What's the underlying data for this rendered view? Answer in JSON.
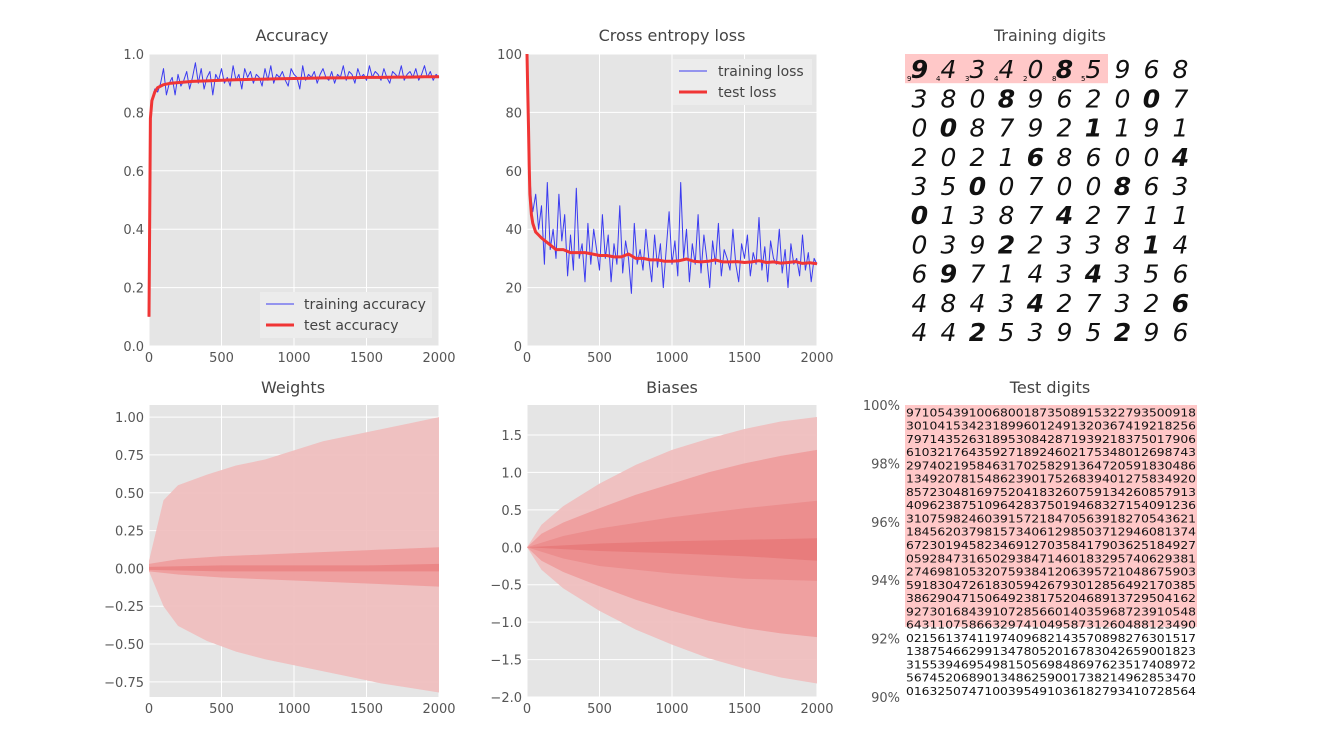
{
  "chart_data": [
    {
      "panel": "accuracy",
      "type": "line",
      "title": "Accuracy",
      "xlim": [
        0,
        2000
      ],
      "ylim": [
        0.0,
        1.0
      ],
      "xticks": [
        "0",
        "500",
        "1000",
        "1500",
        "2000"
      ],
      "yticks": [
        "0.0",
        "0.2",
        "0.4",
        "0.6",
        "0.8",
        "1.0"
      ],
      "legend": "bottom-right",
      "series": [
        {
          "name": "training accuracy",
          "color": "#3b3bf0",
          "x": [
            0,
            10,
            20,
            30,
            40,
            60,
            80,
            100,
            120,
            140,
            160,
            180,
            200,
            220,
            240,
            260,
            280,
            300,
            320,
            340,
            360,
            380,
            400,
            420,
            440,
            460,
            480,
            500,
            520,
            540,
            560,
            580,
            600,
            620,
            640,
            660,
            680,
            700,
            720,
            740,
            760,
            780,
            800,
            820,
            840,
            860,
            880,
            900,
            920,
            940,
            960,
            980,
            1000,
            1020,
            1040,
            1060,
            1080,
            1100,
            1120,
            1140,
            1160,
            1180,
            1200,
            1220,
            1240,
            1260,
            1280,
            1300,
            1320,
            1340,
            1360,
            1380,
            1400,
            1420,
            1440,
            1460,
            1480,
            1500,
            1520,
            1540,
            1560,
            1580,
            1600,
            1620,
            1640,
            1660,
            1680,
            1700,
            1720,
            1740,
            1760,
            1780,
            1800,
            1820,
            1840,
            1860,
            1880,
            1900,
            1920,
            1940,
            1960,
            1980,
            2000
          ],
          "y": [
            0.1,
            0.76,
            0.82,
            0.86,
            0.88,
            0.87,
            0.9,
            0.95,
            0.86,
            0.9,
            0.92,
            0.86,
            0.93,
            0.89,
            0.91,
            0.94,
            0.88,
            0.92,
            0.97,
            0.9,
            0.95,
            0.88,
            0.92,
            0.94,
            0.86,
            0.93,
            0.91,
            0.95,
            0.9,
            0.92,
            0.89,
            0.96,
            0.91,
            0.93,
            0.88,
            0.95,
            0.92,
            0.94,
            0.9,
            0.93,
            0.92,
            0.89,
            0.95,
            0.91,
            0.96,
            0.9,
            0.93,
            0.92,
            0.94,
            0.91,
            0.89,
            0.95,
            0.93,
            0.92,
            0.88,
            0.96,
            0.91,
            0.93,
            0.92,
            0.94,
            0.9,
            0.93,
            0.95,
            0.92,
            0.91,
            0.94,
            0.9,
            0.93,
            0.92,
            0.96,
            0.91,
            0.94,
            0.93,
            0.9,
            0.95,
            0.92,
            0.93,
            0.91,
            0.96,
            0.92,
            0.94,
            0.93,
            0.91,
            0.95,
            0.92,
            0.9,
            0.94,
            0.93,
            0.92,
            0.96,
            0.91,
            0.93,
            0.94,
            0.92,
            0.95,
            0.91,
            0.93,
            0.96,
            0.92,
            0.94,
            0.91,
            0.93,
            0.92
          ]
        },
        {
          "name": "test accuracy",
          "color": "#f03535",
          "x": [
            0,
            10,
            20,
            40,
            60,
            100,
            150,
            200,
            300,
            400,
            500,
            600,
            700,
            800,
            900,
            1000,
            1100,
            1200,
            1300,
            1400,
            1500,
            1600,
            1700,
            1800,
            1900,
            2000
          ],
          "y": [
            0.1,
            0.78,
            0.84,
            0.87,
            0.885,
            0.895,
            0.9,
            0.902,
            0.906,
            0.908,
            0.91,
            0.912,
            0.913,
            0.914,
            0.915,
            0.916,
            0.917,
            0.918,
            0.918,
            0.919,
            0.92,
            0.92,
            0.921,
            0.921,
            0.922,
            0.922
          ]
        }
      ]
    },
    {
      "panel": "loss",
      "type": "line",
      "title": "Cross entropy loss",
      "xlim": [
        0,
        2000
      ],
      "ylim": [
        0,
        100
      ],
      "xticks": [
        "0",
        "500",
        "1000",
        "1500",
        "2000"
      ],
      "yticks": [
        "0",
        "20",
        "40",
        "60",
        "80",
        "100"
      ],
      "legend": "top-right",
      "series": [
        {
          "name": "training loss",
          "color": "#3b3bf0",
          "x": [
            0,
            10,
            20,
            30,
            40,
            60,
            80,
            100,
            120,
            140,
            160,
            180,
            200,
            220,
            240,
            260,
            280,
            300,
            320,
            340,
            360,
            380,
            400,
            420,
            440,
            460,
            480,
            500,
            520,
            540,
            560,
            580,
            600,
            620,
            640,
            660,
            680,
            700,
            720,
            740,
            760,
            780,
            800,
            820,
            840,
            860,
            880,
            900,
            920,
            940,
            960,
            980,
            1000,
            1020,
            1040,
            1060,
            1080,
            1100,
            1120,
            1140,
            1160,
            1180,
            1200,
            1220,
            1240,
            1260,
            1280,
            1300,
            1320,
            1340,
            1360,
            1380,
            1400,
            1420,
            1440,
            1460,
            1480,
            1500,
            1520,
            1540,
            1560,
            1580,
            1600,
            1620,
            1640,
            1660,
            1680,
            1700,
            1720,
            1740,
            1760,
            1780,
            1800,
            1820,
            1840,
            1860,
            1880,
            1900,
            1920,
            1940,
            1960,
            1980,
            2000
          ],
          "y": [
            100,
            75,
            58,
            50,
            46,
            52,
            40,
            48,
            28,
            56,
            33,
            40,
            30,
            52,
            36,
            45,
            24,
            38,
            26,
            54,
            30,
            35,
            22,
            42,
            28,
            40,
            33,
            26,
            45,
            30,
            38,
            22,
            35,
            28,
            48,
            25,
            36,
            30,
            18,
            42,
            28,
            33,
            26,
            40,
            30,
            22,
            38,
            27,
            35,
            20,
            33,
            46,
            28,
            36,
            24,
            56,
            30,
            40,
            22,
            35,
            28,
            45,
            25,
            38,
            30,
            20,
            36,
            28,
            42,
            24,
            33,
            30,
            26,
            40,
            28,
            22,
            35,
            30,
            38,
            24,
            32,
            28,
            44,
            26,
            34,
            22,
            36,
            30,
            28,
            40,
            25,
            33,
            20,
            35,
            28,
            30,
            24,
            38,
            26,
            32,
            22,
            30,
            28
          ]
        },
        {
          "name": "test loss",
          "color": "#f03535",
          "x": [
            0,
            5,
            10,
            15,
            20,
            30,
            40,
            60,
            80,
            100,
            150,
            200,
            250,
            300,
            350,
            400,
            450,
            500,
            550,
            600,
            650,
            700,
            750,
            800,
            850,
            900,
            950,
            1000,
            1050,
            1100,
            1150,
            1200,
            1250,
            1300,
            1350,
            1400,
            1450,
            1500,
            1550,
            1600,
            1650,
            1700,
            1750,
            1800,
            1850,
            1900,
            1950,
            2000
          ],
          "y": [
            100,
            88,
            75,
            62,
            52,
            45,
            42,
            39,
            38,
            37,
            35,
            33,
            33,
            32,
            32,
            32,
            31.5,
            31,
            31,
            30.5,
            30.5,
            31.5,
            30,
            30,
            29.5,
            29.5,
            29,
            29,
            29.2,
            29.8,
            29,
            28.8,
            29,
            29.5,
            28.8,
            28.8,
            28.9,
            28.6,
            28.8,
            29.2,
            28.6,
            28.8,
            28.4,
            28.6,
            28.9,
            28.3,
            28.5,
            28.2
          ]
        }
      ]
    },
    {
      "panel": "weights",
      "type": "area",
      "title": "Weights",
      "xlim": [
        0,
        2000
      ],
      "ylim": [
        -0.85,
        1.08
      ],
      "xticks": [
        "0",
        "500",
        "1000",
        "1500",
        "2000"
      ],
      "yticks": [
        "1.00",
        "0.75",
        "0.50",
        "0.25",
        "0.00",
        "−0.25",
        "−0.50",
        "−0.75"
      ],
      "ytick_values": [
        1.0,
        0.75,
        0.5,
        0.25,
        0.0,
        -0.25,
        -0.5,
        -0.75
      ],
      "bands": [
        {
          "color": "#f0bcbc",
          "x": [
            0,
            100,
            200,
            400,
            600,
            800,
            1000,
            1200,
            1400,
            1600,
            1800,
            2000
          ],
          "upper": [
            0.05,
            0.45,
            0.55,
            0.62,
            0.68,
            0.72,
            0.78,
            0.84,
            0.88,
            0.92,
            0.96,
            1.0
          ],
          "lower": [
            -0.02,
            -0.25,
            -0.38,
            -0.48,
            -0.55,
            -0.6,
            -0.64,
            -0.68,
            -0.72,
            -0.76,
            -0.79,
            -0.82
          ]
        },
        {
          "color": "#ee9c9c",
          "x": [
            0,
            200,
            500,
            1000,
            1500,
            2000
          ],
          "upper": [
            0.03,
            0.06,
            0.08,
            0.1,
            0.12,
            0.14
          ],
          "lower": [
            -0.02,
            -0.04,
            -0.06,
            -0.08,
            -0.1,
            -0.12
          ]
        },
        {
          "color": "#ea8484",
          "x": [
            0,
            500,
            1000,
            1500,
            2000
          ],
          "upper": [
            0.01,
            0.02,
            0.02,
            0.02,
            0.03
          ],
          "lower": [
            -0.01,
            -0.02,
            -0.02,
            -0.02,
            -0.02
          ]
        }
      ]
    },
    {
      "panel": "biases",
      "type": "area",
      "title": "Biases",
      "xlim": [
        0,
        2000
      ],
      "ylim": [
        -2.0,
        1.9
      ],
      "xticks": [
        "0",
        "500",
        "1000",
        "1500",
        "2000"
      ],
      "yticks": [
        "1.5",
        "1.0",
        "0.5",
        "0.0",
        "−0.5",
        "−1.0",
        "−1.5",
        "−2.0"
      ],
      "ytick_values": [
        1.5,
        1.0,
        0.5,
        0.0,
        -0.5,
        -1.0,
        -1.5,
        -2.0
      ],
      "bands": [
        {
          "color": "#f0bcbc",
          "x": [
            0,
            100,
            250,
            500,
            750,
            1000,
            1250,
            1500,
            1750,
            2000
          ],
          "upper": [
            0.0,
            0.3,
            0.55,
            0.85,
            1.1,
            1.3,
            1.45,
            1.58,
            1.68,
            1.74
          ],
          "lower": [
            0.0,
            -0.3,
            -0.55,
            -0.85,
            -1.1,
            -1.3,
            -1.48,
            -1.62,
            -1.74,
            -1.82
          ]
        },
        {
          "color": "#ee9c9c",
          "x": [
            0,
            100,
            250,
            500,
            750,
            1000,
            1250,
            1500,
            1750,
            2000
          ],
          "upper": [
            0.0,
            0.18,
            0.33,
            0.52,
            0.7,
            0.85,
            1.0,
            1.12,
            1.22,
            1.3
          ],
          "lower": [
            0.0,
            -0.18,
            -0.33,
            -0.52,
            -0.7,
            -0.85,
            -0.98,
            -1.08,
            -1.15,
            -1.2
          ]
        },
        {
          "color": "#eb8c8c",
          "x": [
            0,
            250,
            500,
            1000,
            1500,
            2000
          ],
          "upper": [
            0.0,
            0.15,
            0.25,
            0.4,
            0.52,
            0.62
          ],
          "lower": [
            0.0,
            -0.15,
            -0.25,
            -0.35,
            -0.42,
            -0.45
          ]
        },
        {
          "color": "#e87a7a",
          "x": [
            0,
            500,
            1000,
            1500,
            2000
          ],
          "upper": [
            0.0,
            0.05,
            0.08,
            0.1,
            0.12
          ],
          "lower": [
            0.0,
            -0.05,
            -0.08,
            -0.12,
            -0.18
          ]
        }
      ]
    },
    {
      "panel": "training_digits",
      "type": "table",
      "title": "Training digits",
      "rows": [
        [
          "9",
          "4",
          "3",
          "4",
          "0",
          "8",
          "5",
          "9",
          "6",
          "8"
        ],
        [
          "3",
          "8",
          "0",
          "8",
          "9",
          "6",
          "2",
          "0",
          "0",
          "7"
        ],
        [
          "0",
          "0",
          "8",
          "7",
          "9",
          "2",
          "1",
          "1",
          "9",
          "1"
        ],
        [
          "2",
          "0",
          "2",
          "1",
          "6",
          "8",
          "6",
          "0",
          "0",
          "4"
        ],
        [
          "3",
          "5",
          "0",
          "0",
          "7",
          "0",
          "0",
          "8",
          "6",
          "3"
        ],
        [
          "0",
          "1",
          "3",
          "8",
          "7",
          "4",
          "2",
          "7",
          "1",
          "1"
        ],
        [
          "0",
          "3",
          "9",
          "2",
          "2",
          "3",
          "3",
          "8",
          "1",
          "4"
        ],
        [
          "6",
          "9",
          "7",
          "1",
          "4",
          "3",
          "4",
          "3",
          "5",
          "6"
        ],
        [
          "4",
          "8",
          "4",
          "3",
          "4",
          "2",
          "7",
          "3",
          "2",
          "6"
        ],
        [
          "4",
          "4",
          "2",
          "5",
          "3",
          "9",
          "5",
          "2",
          "9",
          "6"
        ]
      ],
      "misclassified_count": 7,
      "misclassified_labels": [
        "9",
        "7",
        "4",
        "8",
        "3",
        "2",
        "4",
        "4",
        "2",
        "0",
        "8",
        "8",
        "5",
        "1"
      ]
    },
    {
      "panel": "test_digits",
      "type": "heatmap",
      "title": "Test digits",
      "yticks": [
        "100%",
        "98%",
        "96%",
        "94%",
        "92%",
        "90%"
      ],
      "ytick_values": [
        100,
        98,
        96,
        94,
        92,
        90
      ],
      "misclassified_fraction_top": 0.76,
      "text_rows": [
        "9710543910068001873508915322793500918",
        "3010415342318996012491320367419218256",
        "7971435263189530842871939218375017906",
        "6103217643592718924602175348012698743",
        "2974021958463170258291364720591830486",
        "1349207815486239017526839401275834920",
        "8572304816975204183260759134260857913",
        "4096238751096428375019468327154091236",
        "3107598246039157218470563918270543621",
        "1845620379815734061298503712946081374",
        "6723019458234691270358417903625184927",
        "0592847316502938471460183295740629381",
        "2746981053207593841206395721048675903",
        "5918304726183059426793012856492170385",
        "3862904715064923817520468913729504162",
        "9273016843910728566014035968723910548",
        "6431107586632974104958731260488123490",
        "0215613741197409682143570898276301517",
        "1387546629913478052016783042659001823",
        "3155394695498150569848697623517408972",
        "5674520689013486259001738214962853470",
        "0163250747100395491036182793410728564"
      ]
    }
  ]
}
